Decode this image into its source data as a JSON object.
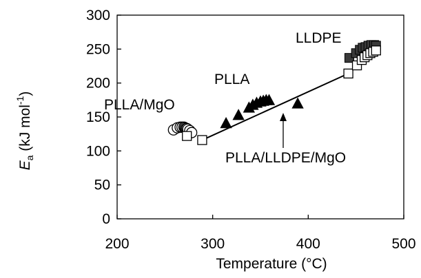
{
  "chart_data": {
    "type": "scatter",
    "xlabel": "Temperature (°C)",
    "ylabel_main": "E",
    "ylabel_sub": "a",
    "ylabel_unit": " (kJ mol",
    "ylabel_sup": "-1",
    "ylabel_close": ")",
    "xlim": [
      200,
      500
    ],
    "ylim": [
      0,
      300
    ],
    "x_ticks": [
      200,
      300,
      400,
      500
    ],
    "y_ticks": [
      0,
      50,
      100,
      150,
      200,
      250,
      300
    ],
    "grid": false,
    "series": [
      {
        "name": "PLLA/MgO",
        "marker": "circle-open",
        "points": [
          [
            259,
            131
          ],
          [
            263,
            134
          ],
          [
            266,
            135
          ],
          [
            268,
            135
          ],
          [
            270,
            135
          ],
          [
            271,
            134
          ],
          [
            272,
            133
          ],
          [
            273,
            133
          ],
          [
            274,
            132
          ],
          [
            276,
            130
          ],
          [
            278,
            127
          ]
        ]
      },
      {
        "name": "PLLA",
        "marker": "triangle-filled",
        "points": [
          [
            314,
            140
          ],
          [
            327,
            152
          ],
          [
            338,
            163
          ],
          [
            342,
            167
          ],
          [
            346,
            170
          ],
          [
            350,
            172
          ],
          [
            353,
            173
          ],
          [
            356,
            174
          ],
          [
            359,
            174
          ],
          [
            389,
            169
          ]
        ]
      },
      {
        "name": "LLDPE",
        "marker": "square-filled",
        "points": [
          [
            443,
            237
          ],
          [
            450,
            244
          ],
          [
            454,
            249
          ],
          [
            457,
            252
          ],
          [
            460,
            253
          ],
          [
            463,
            255
          ],
          [
            466,
            256
          ],
          [
            469,
            256
          ],
          [
            471,
            255
          ]
        ]
      },
      {
        "name": "PLLA/LLDPE/MgO",
        "marker": "square-open",
        "points": [
          [
            273,
            122
          ],
          [
            289,
            116
          ],
          [
            442,
            214
          ],
          [
            451,
            226
          ],
          [
            456,
            234
          ],
          [
            459,
            238
          ],
          [
            462,
            241
          ],
          [
            465,
            244
          ],
          [
            468,
            246
          ],
          [
            471,
            248
          ]
        ]
      }
    ],
    "lines": [
      {
        "name": "trend",
        "from": [
          289,
          116
        ],
        "to": [
          442,
          214
        ]
      }
    ],
    "annotations": [
      {
        "text": "PLLA/MgO",
        "target": "PLLA/MgO"
      },
      {
        "text": "PLLA",
        "target": "PLLA"
      },
      {
        "text": "LLDPE",
        "target": "LLDPE"
      },
      {
        "text": "PLLA/LLDPE/MgO",
        "target": "PLLA/LLDPE/MgO"
      }
    ]
  }
}
